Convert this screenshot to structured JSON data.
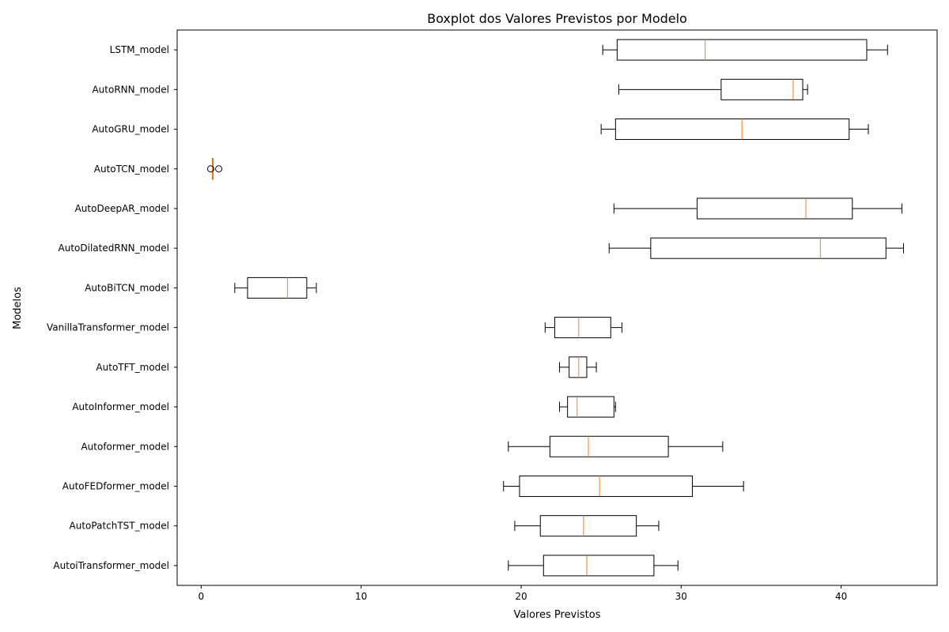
{
  "chart_data": {
    "type": "boxplot",
    "orientation": "horizontal",
    "title": "Boxplot dos Valores Previstos por Modelo",
    "xlabel": "Valores Previstos",
    "ylabel": "Modelos",
    "xlim": [
      -1.5,
      46
    ],
    "xticks": [
      0,
      10,
      20,
      30,
      40
    ],
    "grid": false,
    "colors": {
      "box": "#000000",
      "median": "#ff7f0e",
      "outlier": "#000000"
    },
    "boxes": [
      {
        "name": "LSTM_model",
        "whislo": 25.1,
        "q1": 26.0,
        "med": 31.5,
        "q3": 41.6,
        "whishi": 42.9,
        "fliers": []
      },
      {
        "name": "AutoRNN_model",
        "whislo": 26.1,
        "q1": 32.5,
        "med": 37.0,
        "q3": 37.6,
        "whishi": 37.9,
        "fliers": []
      },
      {
        "name": "AutoGRU_model",
        "whislo": 25.0,
        "q1": 25.9,
        "med": 33.8,
        "q3": 40.5,
        "whishi": 41.7,
        "fliers": []
      },
      {
        "name": "AutoTCN_model",
        "whislo": 0.7,
        "q1": 0.7,
        "med": 0.7,
        "q3": 0.7,
        "whishi": 0.7,
        "fliers": [
          0.6,
          1.1
        ]
      },
      {
        "name": "AutoDeepAR_model",
        "whislo": 25.8,
        "q1": 31.0,
        "med": 37.8,
        "q3": 40.7,
        "whishi": 43.8,
        "fliers": []
      },
      {
        "name": "AutoDilatedRNN_model",
        "whislo": 25.5,
        "q1": 28.1,
        "med": 38.7,
        "q3": 42.8,
        "whishi": 43.9,
        "fliers": []
      },
      {
        "name": "AutoBiTCN_model",
        "whislo": 2.1,
        "q1": 2.9,
        "med": 5.4,
        "q3": 6.6,
        "whishi": 7.2,
        "fliers": []
      },
      {
        "name": "VanillaTransformer_model",
        "whislo": 21.5,
        "q1": 22.1,
        "med": 23.6,
        "q3": 25.6,
        "whishi": 26.3,
        "fliers": []
      },
      {
        "name": "AutoTFT_model",
        "whislo": 22.4,
        "q1": 23.0,
        "med": 23.6,
        "q3": 24.1,
        "whishi": 24.7,
        "fliers": []
      },
      {
        "name": "AutoInformer_model",
        "whislo": 22.4,
        "q1": 22.9,
        "med": 23.5,
        "q3": 25.8,
        "whishi": 25.9,
        "fliers": []
      },
      {
        "name": "Autoformer_model",
        "whislo": 19.2,
        "q1": 21.8,
        "med": 24.2,
        "q3": 29.2,
        "whishi": 32.6,
        "fliers": []
      },
      {
        "name": "AutoFEDformer_model",
        "whislo": 18.9,
        "q1": 19.9,
        "med": 24.9,
        "q3": 30.7,
        "whishi": 33.9,
        "fliers": []
      },
      {
        "name": "AutoPatchTST_model",
        "whislo": 19.6,
        "q1": 21.2,
        "med": 23.9,
        "q3": 27.2,
        "whishi": 28.6,
        "fliers": []
      },
      {
        "name": "AutoiTransformer_model",
        "whislo": 19.2,
        "q1": 21.4,
        "med": 24.1,
        "q3": 28.3,
        "whishi": 29.8,
        "fliers": []
      }
    ]
  }
}
